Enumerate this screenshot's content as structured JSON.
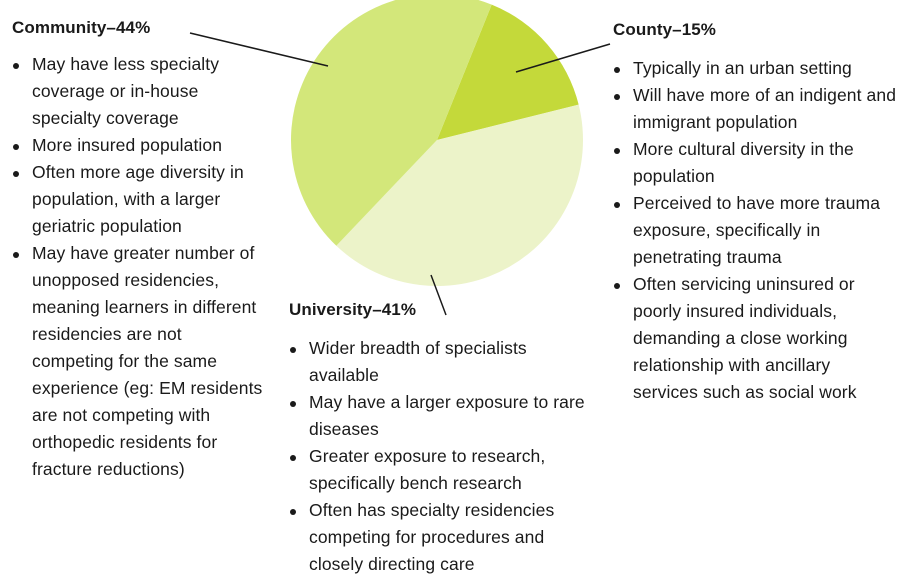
{
  "chart_data": {
    "type": "pie",
    "title": "",
    "slices": [
      {
        "label": "Community",
        "value": 44,
        "color": "#d3e77a"
      },
      {
        "label": "County",
        "value": 15,
        "color": "#c4d93a"
      },
      {
        "label": "University",
        "value": 41,
        "color": "#ecf3c9"
      }
    ]
  },
  "labels": {
    "community": {
      "heading": "Community–44%",
      "bullets": [
        "May have less specialty coverage or in-house specialty coverage",
        "More insured population",
        "Often more age diversity in population, with a larger geriatric population",
        "May have greater number of unopposed residencies, meaning learners in different residencies are not competing for the same experience (eg: EM residents are not competing with orthopedic residents for fracture reductions)"
      ]
    },
    "university": {
      "heading": "University–41%",
      "bullets": [
        "Wider breadth of specialists available",
        "May have a larger exposure to rare diseases",
        "Greater exposure to research, specifically bench research",
        "Often has specialty residencies competing for procedures and closely directing care"
      ]
    },
    "county": {
      "heading": "County–15%",
      "bullets": [
        "Typically in an urban setting",
        "Will have more of an indigent and immigrant population",
        "More cultural diversity in the population",
        "Perceived to have more trauma exposure, specifically in penetrating trauma",
        "Often servicing uninsured or poorly insured individuals, demanding a close working relationship with ancillary services such as social work"
      ]
    }
  }
}
